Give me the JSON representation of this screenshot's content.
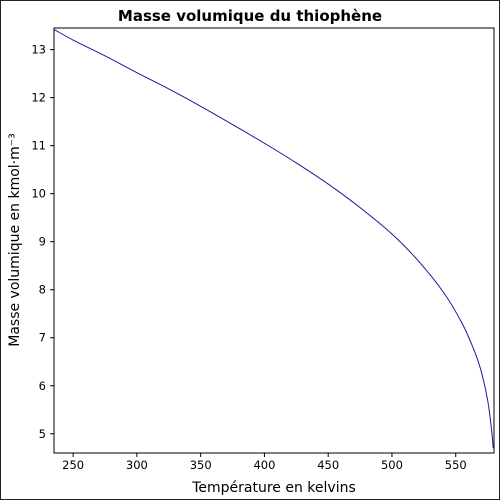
{
  "chart_data": {
    "type": "line",
    "title": "Masse volumique du thiophène",
    "xlabel": "Température en kelvins",
    "ylabel": "Masse volumique en kmol·m⁻³",
    "xlim": [
      235,
      580
    ],
    "ylim": [
      4.6,
      13.45
    ],
    "xticks": [
      250,
      300,
      350,
      400,
      450,
      500,
      550
    ],
    "yticks": [
      5,
      6,
      7,
      8,
      9,
      10,
      11,
      12,
      13
    ],
    "grid": false,
    "series": [
      {
        "color": "#1a1a9a",
        "x": [
          235,
          250,
          275,
          300,
          325,
          350,
          375,
          400,
          425,
          450,
          475,
          500,
          520,
          540,
          555,
          565,
          570,
          575,
          578,
          579.4
        ],
        "y": [
          13.42,
          13.2,
          12.87,
          12.52,
          12.18,
          11.82,
          11.44,
          11.05,
          10.64,
          10.2,
          9.71,
          9.16,
          8.62,
          7.96,
          7.3,
          6.7,
          6.3,
          5.7,
          5.1,
          4.7
        ]
      }
    ]
  }
}
